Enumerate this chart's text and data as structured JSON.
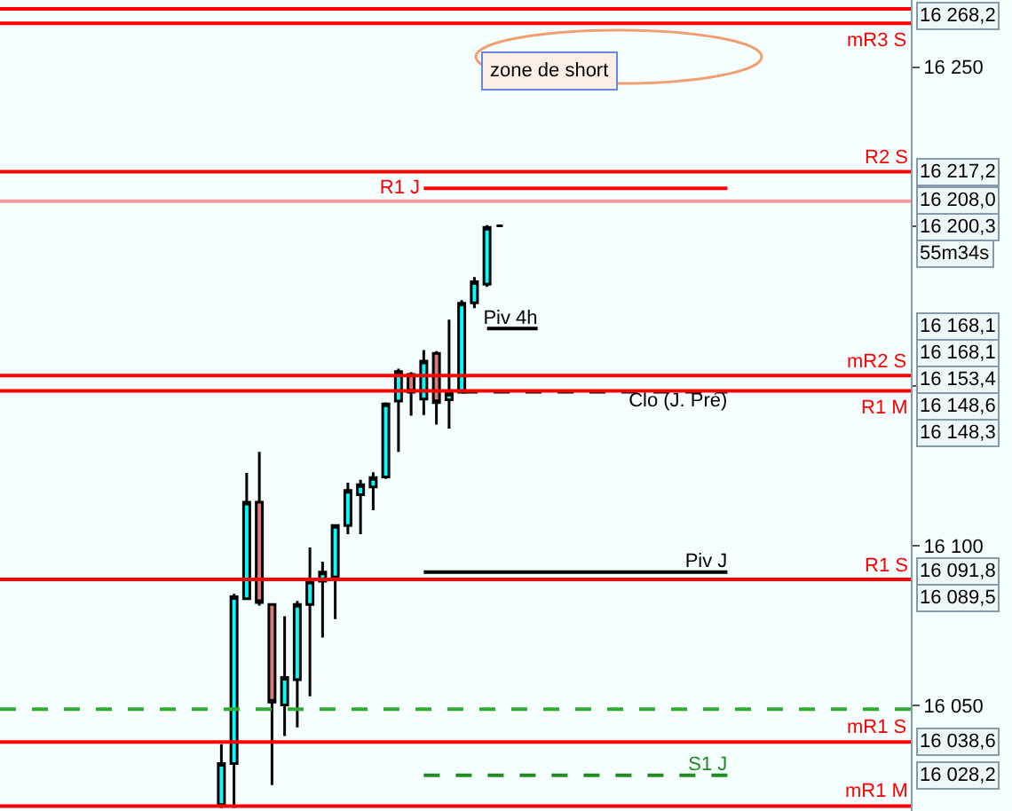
{
  "chart_data": {
    "type": "candlestick",
    "categories": [
      null,
      null,
      null,
      null,
      null,
      null,
      null,
      null,
      null,
      null,
      null,
      null,
      null,
      null,
      null,
      null,
      null,
      null,
      null,
      null,
      null,
      null,
      null,
      null,
      null,
      null,
      null,
      null,
      null,
      null,
      null,
      null,
      null,
      null,
      null,
      null,
      null,
      null,
      null,
      null,
      null,
      null,
      null,
      null,
      null,
      null,
      null,
      null,
      null,
      null,
      null,
      null,
      null,
      null,
      null,
      null,
      null,
      null,
      null,
      null,
      null,
      null,
      null,
      null,
      null,
      null,
      null,
      null,
      null,
      null,
      null,
      null
    ],
    "ohlc": [
      null,
      null,
      null,
      null,
      null,
      null,
      null,
      null,
      null,
      null,
      null,
      null,
      null,
      null,
      null,
      null,
      null,
      [
        16019,
        16037.9,
        16018,
        16031.9
      ],
      [
        16031.9,
        16085.0,
        16018,
        16084.1
      ],
      [
        16083.5,
        16122.9,
        16083.5,
        16113.7
      ],
      [
        16113.7,
        16129.5,
        16081.3,
        16082.3
      ],
      [
        16081.7,
        16082.0,
        16025.1,
        16051.1
      ],
      [
        16050.2,
        16078.0,
        16040.5,
        16058.8
      ],
      [
        16058.1,
        16082.8,
        16043.2,
        16081.7
      ],
      [
        16081.7,
        16099.5,
        16052.9,
        16089.0
      ],
      [
        16089.0,
        16095.1,
        16071.3,
        16091.8
      ],
      [
        16090.3,
        16106.4,
        16077.1,
        16106.4
      ],
      [
        16106.4,
        16119.8,
        16103.7,
        16117.4
      ],
      [
        16116.1,
        16120.7,
        16103.7,
        16119.2
      ],
      [
        16118.5,
        16123.1,
        16111.2,
        16121.4
      ],
      [
        16121.6,
        16145.0,
        16121.0,
        16144.5
      ],
      [
        16145.4,
        16155.5,
        16129.5,
        16154.6
      ],
      [
        16153.7,
        16154.4,
        16140.8,
        16148.2
      ],
      [
        16146.0,
        16161.4,
        16141.0,
        16157.9
      ],
      [
        16160.3,
        16161.0,
        16138.0,
        16144.9
      ],
      [
        16145.8,
        16170.9,
        16136.8,
        16147.8
      ],
      [
        16148.2,
        16177.0,
        16148.0,
        16176.0
      ],
      [
        16176.2,
        16184.2,
        16174.5,
        16182.8
      ],
      [
        16182.0,
        16200.5,
        16181.2,
        16199.8
      ],
      [
        16200.3,
        16200.5,
        16200.3,
        16200.3
      ],
      null,
      null,
      null,
      null,
      null,
      null,
      null,
      null,
      null,
      null,
      null,
      null,
      null,
      null,
      null,
      null,
      null,
      null,
      null,
      null,
      null,
      null,
      null,
      null,
      null,
      null,
      null,
      null,
      null,
      null,
      null,
      null
    ],
    "colors": [
      null,
      null,
      null,
      null,
      null,
      null,
      null,
      null,
      null,
      null,
      null,
      null,
      null,
      null,
      null,
      null,
      null,
      "#00ffff",
      "#00ffff",
      "#00ffff",
      "#d97b7b",
      "#d97b7b",
      "#00ffff",
      "#00ffff",
      "#00ffff",
      "#00ffff",
      "#00ffff",
      "#00ffff",
      "#00ffff",
      "#00ffff",
      "#00ffff",
      "#00ffff",
      "#d97b7b",
      "#00ffff",
      "#d97b7b",
      "#00ffff",
      "#00ffff",
      "#00ffff",
      "#00ffff",
      "#000000",
      null,
      null,
      null,
      null,
      null,
      null,
      null,
      null,
      null,
      null,
      null,
      null,
      null,
      null,
      null,
      null,
      null,
      null,
      null,
      null,
      null,
      null,
      null,
      null,
      null,
      null,
      null,
      null,
      null,
      null,
      null,
      null
    ],
    "series": [
      {
        "type": "line",
        "name": "R1 J",
        "color": "#ff0000",
        "values": [
          null,
          null,
          null,
          null,
          null,
          null,
          null,
          null,
          null,
          null,
          null,
          null,
          null,
          null,
          null,
          null,
          null,
          null,
          null,
          null,
          null,
          null,
          null,
          null,
          null,
          null,
          null,
          null,
          null,
          null,
          null,
          null,
          null,
          16212.0,
          16212.0,
          16212.0,
          16212.0,
          16212.0,
          16212.0,
          16212.0,
          16212.0,
          16212.0,
          16212.0,
          16212.0,
          16212.0,
          16212.0,
          16212.0,
          16212.0,
          16212.0,
          16212.0,
          16212.0,
          16212.0,
          16212.0,
          16212.0,
          16212.0,
          16212.0,
          16212.0,
          16212.0,
          null,
          null,
          null,
          null,
          null,
          null,
          null,
          null,
          null,
          null,
          null,
          null,
          null,
          null
        ]
      },
      {
        "type": "line",
        "name": "Piv 4h",
        "color": "#000000",
        "values": [
          null,
          null,
          null,
          null,
          null,
          null,
          null,
          null,
          null,
          null,
          null,
          null,
          null,
          null,
          null,
          null,
          null,
          null,
          null,
          null,
          null,
          null,
          null,
          null,
          null,
          null,
          null,
          null,
          null,
          null,
          null,
          null,
          null,
          null,
          null,
          null,
          null,
          null,
          16168.1,
          16168.1,
          16168.1,
          16168.1,
          16168.1,
          null,
          null,
          null,
          null,
          null,
          null,
          null,
          null,
          null,
          null,
          null,
          null,
          null,
          null,
          null,
          null,
          null,
          null,
          null,
          null,
          null,
          null,
          null,
          null,
          null,
          null,
          null,
          null,
          null
        ]
      },
      {
        "type": "line",
        "name": "Clo (J. Pré)",
        "color": "#000000",
        "line_style": "dashed",
        "values": [
          null,
          null,
          null,
          null,
          null,
          null,
          null,
          null,
          null,
          null,
          null,
          null,
          null,
          null,
          null,
          null,
          null,
          null,
          null,
          null,
          null,
          null,
          null,
          null,
          null,
          null,
          null,
          null,
          null,
          null,
          null,
          null,
          null,
          null,
          null,
          null,
          16148.3,
          16148.3,
          16148.3,
          16148.3,
          16148.3,
          16148.3,
          16148.3,
          16148.3,
          16148.3,
          16148.3,
          16148.3,
          16148.3,
          16148.3,
          16148.3,
          16148.3,
          16148.3,
          16148.3,
          16148.3,
          16148.3,
          16148.3,
          16148.3,
          16148.3,
          null,
          null,
          null,
          null,
          null,
          null,
          null,
          null,
          null,
          null,
          null,
          null,
          null,
          null
        ]
      },
      {
        "type": "line",
        "name": "Piv J",
        "color": "#000000",
        "values": [
          null,
          null,
          null,
          null,
          null,
          null,
          null,
          null,
          null,
          null,
          null,
          null,
          null,
          null,
          null,
          null,
          null,
          null,
          null,
          null,
          null,
          null,
          null,
          null,
          null,
          null,
          null,
          null,
          null,
          null,
          null,
          null,
          null,
          16091.8,
          16091.8,
          16091.8,
          16091.8,
          16091.8,
          16091.8,
          16091.8,
          16091.8,
          16091.8,
          16091.8,
          16091.8,
          16091.8,
          16091.8,
          16091.8,
          16091.8,
          16091.8,
          16091.8,
          16091.8,
          16091.8,
          16091.8,
          16091.8,
          16091.8,
          16091.8,
          16091.8,
          16091.8,
          null,
          null,
          null,
          null,
          null,
          null,
          null,
          null,
          null,
          null,
          null,
          null,
          null,
          null
        ]
      },
      {
        "type": "line",
        "name": "S1 J",
        "color": "#228b22",
        "line_style": "dashed",
        "values": [
          null,
          null,
          null,
          null,
          null,
          null,
          null,
          null,
          null,
          null,
          null,
          null,
          null,
          null,
          null,
          null,
          null,
          null,
          null,
          null,
          null,
          null,
          null,
          null,
          null,
          null,
          null,
          null,
          null,
          null,
          null,
          null,
          null,
          16028.2,
          16028.2,
          16028.2,
          16028.2,
          16028.2,
          16028.2,
          16028.2,
          16028.2,
          16028.2,
          16028.2,
          16028.2,
          16028.2,
          16028.2,
          16028.2,
          16028.2,
          16028.2,
          16028.2,
          16028.2,
          16028.2,
          16028.2,
          16028.2,
          16028.2,
          16028.2,
          16028.2,
          16028.2,
          null,
          null,
          null,
          null,
          null,
          null,
          null,
          null,
          null,
          null,
          null,
          null,
          null,
          null
        ]
      }
    ],
    "ref_lines": [
      {
        "axis": "y",
        "value": 16268.2,
        "label": "mR3 S",
        "color": "#ff0000"
      },
      {
        "axis": "y",
        "value": 16263.7,
        "label": null,
        "color": "#ff0000"
      },
      {
        "axis": "y",
        "value": 16217.2,
        "label": "R2 S",
        "color": "#ff0000"
      },
      {
        "axis": "y",
        "value": 16208.0,
        "label": null,
        "color": "#ff9999"
      },
      {
        "axis": "y",
        "value": 16153.4,
        "label": "mR2 S",
        "color": "#ff0000"
      },
      {
        "axis": "y",
        "value": 16148.6,
        "label": "R1 M",
        "color": "#ff0000"
      },
      {
        "axis": "y",
        "value": 16089.5,
        "label": "R1 S",
        "color": "#ff0000"
      },
      {
        "axis": "y",
        "value": 16048.9,
        "label": null,
        "color": "#33aa33",
        "line_style": "dashed"
      },
      {
        "axis": "y",
        "value": 16038.6,
        "label": "mR1 S",
        "color": "#ff0000"
      },
      {
        "axis": "y",
        "value": 16018.5,
        "label": "mR1 M",
        "color": "#ff0000"
      }
    ],
    "annotations": [
      "zone de short",
      "16 268,2",
      "16 217,2",
      "16 208,0",
      "16 200,3",
      "55m34s",
      "16 168,1",
      "16 168,1",
      "16 153,4",
      "16 148,6",
      "16 148,3",
      "16 091,8",
      "16 089,5",
      "16 038,6",
      "16 028,2"
    ],
    "ylim": [
      16017,
      16271
    ],
    "yticks": [
      {
        "value": 16050,
        "label": "16 050"
      },
      {
        "value": 16100,
        "label": "16 100"
      },
      {
        "value": 16150,
        "label": null
      },
      {
        "value": 16200,
        "label": null
      },
      {
        "value": 16250,
        "label": "16 250"
      }
    ],
    "tick_labels": "y"
  }
}
